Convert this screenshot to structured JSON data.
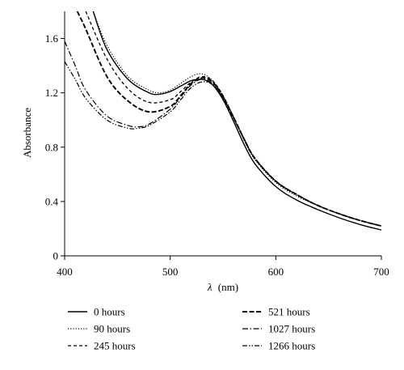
{
  "chart_data": {
    "type": "line",
    "xlabel_symbol": "λ",
    "xlabel_unit": "(nm)",
    "ylabel": "Absorbance",
    "xlim": [
      400,
      700
    ],
    "ylim": [
      0,
      1.8
    ],
    "x_ticks": [
      400,
      500,
      600,
      700
    ],
    "x_tick_labels": [
      "400",
      "500",
      "600",
      "700"
    ],
    "y_ticks": [
      0,
      0.4,
      0.8,
      1.2,
      1.6
    ],
    "y_tick_labels": [
      "0",
      "0.4",
      "0.8",
      "1.2",
      "1.6"
    ],
    "grid": false,
    "legend_position": "below",
    "series": [
      {
        "name": "0 hours",
        "style": "solid",
        "x": [
          427,
          440,
          460,
          480,
          490,
          500,
          510,
          520,
          530,
          540,
          550,
          560,
          570,
          580,
          600,
          620,
          640,
          660,
          680,
          700
        ],
        "y": [
          1.8,
          1.52,
          1.3,
          1.2,
          1.19,
          1.21,
          1.25,
          1.29,
          1.3,
          1.26,
          1.15,
          0.99,
          0.82,
          0.68,
          0.51,
          0.41,
          0.34,
          0.28,
          0.23,
          0.19
        ]
      },
      {
        "name": "90 hours",
        "style": "dotted",
        "x": [
          427,
          440,
          460,
          480,
          490,
          500,
          510,
          520,
          530,
          540,
          550,
          560,
          570,
          580,
          600,
          620,
          640,
          660,
          680,
          700
        ],
        "y": [
          1.8,
          1.55,
          1.32,
          1.22,
          1.2,
          1.22,
          1.27,
          1.32,
          1.34,
          1.29,
          1.18,
          1.02,
          0.85,
          0.71,
          0.54,
          0.44,
          0.37,
          0.31,
          0.26,
          0.22
        ]
      },
      {
        "name": "245 hours",
        "style": "dashed",
        "x": [
          420,
          440,
          460,
          480,
          500,
          510,
          520,
          530,
          540,
          550,
          560,
          570,
          580,
          600,
          620,
          640,
          660,
          680,
          700
        ],
        "y": [
          1.8,
          1.45,
          1.23,
          1.13,
          1.15,
          1.21,
          1.28,
          1.32,
          1.29,
          1.18,
          1.02,
          0.86,
          0.72,
          0.55,
          0.45,
          0.37,
          0.31,
          0.26,
          0.22
        ]
      },
      {
        "name": "521 hours",
        "style": "longdash",
        "x": [
          412,
          420,
          440,
          460,
          480,
          500,
          510,
          520,
          530,
          540,
          550,
          560,
          570,
          580,
          600,
          620,
          640,
          660,
          680,
          700
        ],
        "y": [
          1.8,
          1.67,
          1.32,
          1.14,
          1.06,
          1.1,
          1.18,
          1.27,
          1.31,
          1.28,
          1.17,
          1.02,
          0.86,
          0.72,
          0.55,
          0.45,
          0.37,
          0.31,
          0.26,
          0.22
        ]
      },
      {
        "name": "1027 hours",
        "style": "dashdot",
        "x": [
          400,
          410,
          420,
          440,
          460,
          470,
          480,
          500,
          510,
          520,
          530,
          540,
          550,
          560,
          570,
          580,
          600,
          620,
          640,
          660,
          680,
          700
        ],
        "y": [
          1.58,
          1.4,
          1.22,
          1.03,
          0.96,
          0.95,
          0.97,
          1.08,
          1.17,
          1.26,
          1.3,
          1.27,
          1.17,
          1.02,
          0.86,
          0.72,
          0.55,
          0.45,
          0.37,
          0.31,
          0.26,
          0.22
        ]
      },
      {
        "name": "1266 hours",
        "style": "dashdotdot",
        "x": [
          400,
          410,
          420,
          440,
          460,
          470,
          480,
          500,
          510,
          520,
          530,
          540,
          550,
          560,
          570,
          580,
          600,
          620,
          640,
          660,
          680,
          700
        ],
        "y": [
          1.43,
          1.3,
          1.16,
          1.0,
          0.94,
          0.94,
          0.96,
          1.06,
          1.15,
          1.24,
          1.28,
          1.26,
          1.16,
          1.01,
          0.86,
          0.72,
          0.55,
          0.45,
          0.37,
          0.31,
          0.26,
          0.22
        ]
      }
    ]
  }
}
